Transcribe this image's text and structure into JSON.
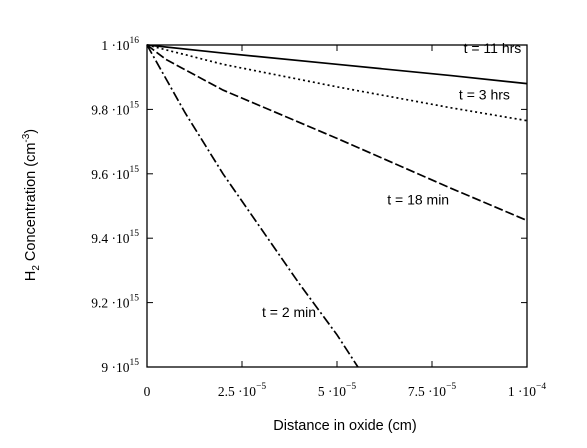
{
  "chart_data": {
    "type": "line",
    "title": "",
    "xlabel": "Distance in oxide (cm)",
    "ylabel": {
      "prefix": "H",
      "subscript": "2",
      "middle": " Concentration (cm",
      "superscript": "-3",
      "suffix": ")"
    },
    "xlim": [
      0,
      0.0001
    ],
    "ylim": [
      9000000000000000.0,
      1e+16
    ],
    "grid": false,
    "x_ticks": [
      {
        "value": 0,
        "mantissa": "0",
        "exponent": ""
      },
      {
        "value": 2.5e-05,
        "mantissa": "2.5 ·10",
        "exponent": "−5"
      },
      {
        "value": 5e-05,
        "mantissa": "5 ·10",
        "exponent": "−5"
      },
      {
        "value": 7.5e-05,
        "mantissa": "7.5 ·10",
        "exponent": "−5"
      },
      {
        "value": 0.0001,
        "mantissa": "1 ·10",
        "exponent": "−4"
      }
    ],
    "y_ticks": [
      {
        "value": 9000000000000000.0,
        "mantissa": "9 ·10",
        "exponent": "15"
      },
      {
        "value": 9200000000000000.0,
        "mantissa": "9.2 ·10",
        "exponent": "15"
      },
      {
        "value": 9400000000000000.0,
        "mantissa": "9.4 ·10",
        "exponent": "15"
      },
      {
        "value": 9600000000000000.0,
        "mantissa": "9.6 ·10",
        "exponent": "15"
      },
      {
        "value": 9800000000000000.0,
        "mantissa": "9.8 ·10",
        "exponent": "15"
      },
      {
        "value": 1e+16,
        "mantissa": "1 ·10",
        "exponent": "16"
      }
    ],
    "series": [
      {
        "name": "t = 11 hrs",
        "dash": "solid",
        "x": [
          0,
          2e-05,
          5e-05,
          8e-05,
          0.0001
        ],
        "y": [
          1e+16,
          9975000000000000.0,
          9940000000000000.0,
          9905000000000000.0,
          9880000000000000.0
        ]
      },
      {
        "name": "t = 3 hrs",
        "dash": "dotted",
        "x": [
          0,
          2e-05,
          5e-05,
          8e-05,
          0.0001
        ],
        "y": [
          1e+16,
          9940000000000000.0,
          9870000000000000.0,
          9805000000000000.0,
          9765000000000000.0
        ]
      },
      {
        "name": "t = 18 min",
        "dash": "dashed",
        "x": [
          0,
          5e-06,
          2e-05,
          5e-05,
          8e-05,
          0.0001
        ],
        "y": [
          1e+16,
          9955000000000000.0,
          9860000000000000.0,
          9710000000000000.0,
          9555000000000000.0,
          9455000000000000.0
        ]
      },
      {
        "name": "t = 2 min",
        "dash": "dash-dot",
        "x": [
          0,
          1e-05,
          2e-05,
          3e-05,
          4e-05,
          5e-05,
          5.55e-05
        ],
        "y": [
          1e+16,
          9790000000000000.0,
          9600000000000000.0,
          9430000000000000.0,
          9260000000000000.0,
          9100000000000000.0,
          9000000000000000.0
        ]
      }
    ]
  }
}
